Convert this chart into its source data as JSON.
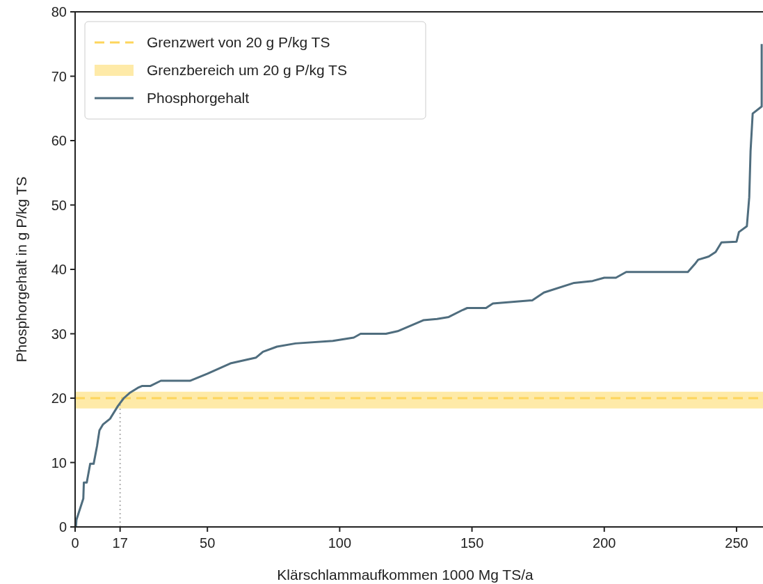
{
  "chart_data": {
    "type": "line",
    "xlabel": "Klärschlammaufkommen 1000 Mg TS/a",
    "ylabel": "Phosphorgehalt in g P/kg TS",
    "xlim": [
      0,
      260
    ],
    "ylim": [
      0,
      80
    ],
    "xticks": [
      0,
      17,
      50,
      100,
      150,
      200,
      250
    ],
    "yticks": [
      0,
      10,
      20,
      30,
      40,
      50,
      60,
      70,
      80
    ],
    "grid": false,
    "legend": "top left",
    "line_style": "solid",
    "ref_lines": [
      {
        "axis": "y",
        "value": 20,
        "label": "Grenzwert von 20 g P/kg TS",
        "color": "#fdd55c",
        "line_style": "dashed"
      },
      {
        "axis": "x",
        "value": 17,
        "color": "#b0b0b0",
        "line_style": "dotted"
      }
    ],
    "bands": [
      {
        "axis": "y",
        "from": 18.4,
        "to": 21,
        "label": "Grenzbereich um 20 g P/kg TS",
        "color": "#feeaa8"
      }
    ],
    "series": [
      {
        "name": "Phosphorgehalt",
        "color": "#4f6d7e",
        "x": [
          0.3,
          0.5,
          3.1,
          3.3,
          4.4,
          5.7,
          7,
          8.3,
          9.2,
          10.5,
          13.2,
          16.2,
          18.4,
          20.6,
          23.7,
          25.4,
          28.5,
          32.4,
          43.4,
          50,
          58.7,
          68.4,
          71,
          76.3,
          83.3,
          97.4,
          105.3,
          107.9,
          117.5,
          121.9,
          131.6,
          136.8,
          141.2,
          146.5,
          148.2,
          155.3,
          157.9,
          172.8,
          177.2,
          188.6,
          195.6,
          200,
          204.4,
          208.3,
          231.6,
          234.2,
          235.5,
          239.5,
          242.1,
          244.3,
          250,
          250.9,
          253.9,
          254.8,
          255.3,
          256.1,
          259.5,
          259.5
        ],
        "values": [
          0,
          1.1,
          4.4,
          6.9,
          6.9,
          9.8,
          9.8,
          12.6,
          15,
          15.9,
          16.8,
          18.8,
          20,
          20.8,
          21.6,
          21.9,
          21.9,
          22.7,
          22.7,
          23.8,
          25.4,
          26.3,
          27.2,
          28,
          28.5,
          28.9,
          29.4,
          30,
          30,
          30.4,
          32.1,
          32.3,
          32.6,
          33.7,
          34,
          34,
          34.7,
          35.2,
          36.4,
          37.9,
          38.2,
          38.7,
          38.7,
          39.6,
          39.6,
          40.8,
          41.5,
          42,
          42.7,
          44.2,
          44.3,
          45.8,
          46.7,
          51.2,
          58.4,
          64.2,
          65.3,
          75
        ]
      }
    ]
  }
}
